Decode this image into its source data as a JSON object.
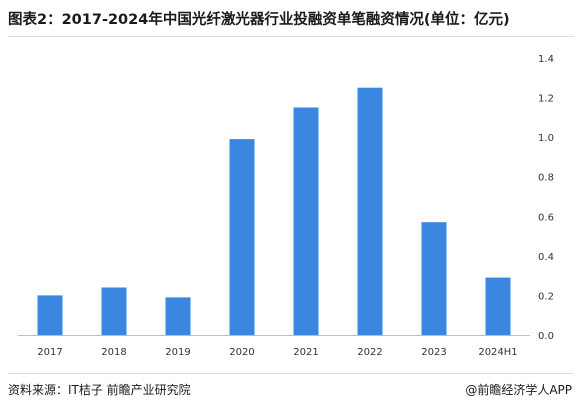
{
  "title": "图表2：2017-2024年中国光纤激光器行业投融资单笔融资情况(单位：亿元)",
  "source": "资料来源：IT桔子 前瞻产业研究院",
  "brand": "@前瞻经济学人APP",
  "colors": {
    "bar": "#3a86e0",
    "axis": "#bfbfbf"
  },
  "chart_data": {
    "type": "bar",
    "categories": [
      "2017",
      "2018",
      "2019",
      "2020",
      "2021",
      "2022",
      "2023",
      "2024H1"
    ],
    "values": [
      0.2,
      0.24,
      0.19,
      0.99,
      1.15,
      1.25,
      0.57,
      0.29
    ],
    "ylim": [
      0,
      1.4
    ],
    "yticks": [
      "0.0",
      "0.2",
      "0.4",
      "0.6",
      "0.8",
      "1.0",
      "1.2",
      "1.4"
    ],
    "y_axis_position": "right",
    "grid": false,
    "legend": "none",
    "xlabel": "",
    "ylabel": ""
  }
}
